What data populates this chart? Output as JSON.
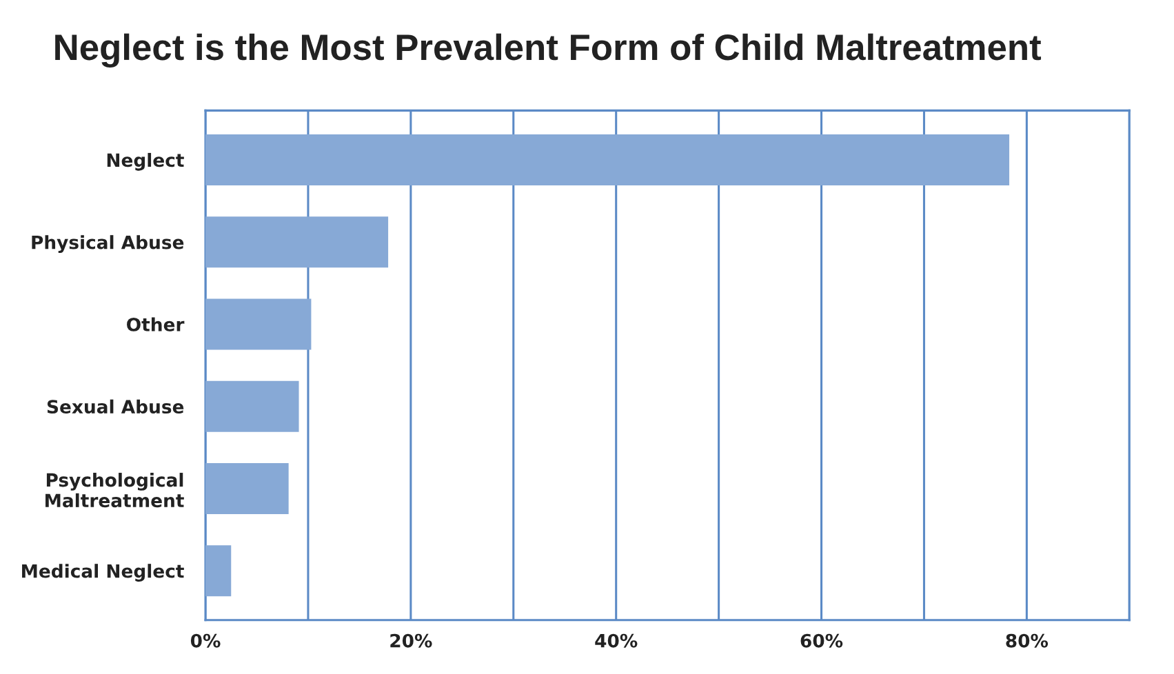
{
  "chart_data": {
    "type": "bar",
    "title": "Neglect is the Most Prevalent Form of Child Maltreatment",
    "orientation": "horizontal",
    "categories": [
      "Neglect",
      "Physical Abuse",
      "Other",
      "Sexual Abuse",
      "Psychological\nMaltreatment",
      "Medical Neglect"
    ],
    "values": [
      78.3,
      17.8,
      10.3,
      9.1,
      8.1,
      2.5
    ],
    "color": "#87a9d6",
    "xlim": [
      0,
      90
    ],
    "xticks": [
      {
        "value": 0,
        "label": "0%"
      },
      {
        "value": 10,
        "label": null
      },
      {
        "value": 20,
        "label": "20%"
      },
      {
        "value": 30,
        "label": null
      },
      {
        "value": 40,
        "label": "40%"
      },
      {
        "value": 50,
        "label": null
      },
      {
        "value": 60,
        "label": "60%"
      },
      {
        "value": 70,
        "label": null
      },
      {
        "value": 80,
        "label": "80%"
      },
      {
        "value": 90,
        "label": null
      }
    ],
    "grid": "x"
  }
}
